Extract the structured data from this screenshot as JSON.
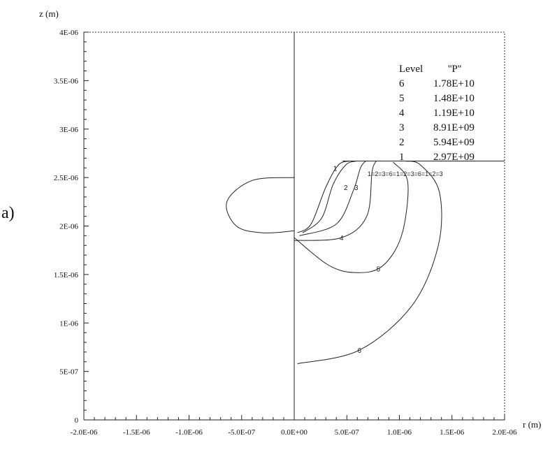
{
  "panel_label": "a)",
  "chart_data": {
    "type": "contour",
    "xlabel": "r (m)",
    "ylabel": "z (m)",
    "xlim": [
      -2e-06,
      2e-06
    ],
    "ylim": [
      0,
      4e-06
    ],
    "x_tick_labels": [
      "-2.0E-06",
      "-1.5E-06",
      "-1.0E-06",
      "-5.0E-07",
      "0.0E+00",
      "5.0E-07",
      "1.0E-06",
      "1.5E-06",
      "2.0E-06"
    ],
    "x_tick_values": [
      -2e-06,
      -1.5e-06,
      -1e-06,
      -5e-07,
      0,
      5e-07,
      1e-06,
      1.5e-06,
      2e-06
    ],
    "y_tick_labels": [
      "0",
      "5E-07",
      "1E-06",
      "1.5E-06",
      "2E-06",
      "2.5E-06",
      "3E-06",
      "3.5E-06",
      "4E-06"
    ],
    "y_tick_values": [
      0,
      5e-07,
      1e-06,
      1.5e-06,
      2e-06,
      2.5e-06,
      3e-06,
      3.5e-06,
      4e-06
    ],
    "legend": {
      "header_level": "Level",
      "header_var": "''P''",
      "entries": [
        {
          "level": "6",
          "value": "1.78E+10"
        },
        {
          "level": "5",
          "value": "1.48E+10"
        },
        {
          "level": "4",
          "value": "1.19E+10"
        },
        {
          "level": "3",
          "value": "8.91E+09"
        },
        {
          "level": "2",
          "value": "5.94E+09"
        },
        {
          "level": "1",
          "value": "2.97E+09"
        }
      ],
      "placement": "top-right"
    },
    "interface_text": "1=2=3=6=1=2=3=6=1=2=3",
    "interface_z": 2.67e-06,
    "contours": [
      {
        "level": "1",
        "label_at": [
          3.9e-07,
          2.6e-06
        ],
        "points": [
          [
            3e-08,
            1.93e-06
          ],
          [
            1.6e-07,
            2.02e-06
          ],
          [
            3e-07,
            2.4e-06
          ],
          [
            4.2e-07,
            2.63e-06
          ],
          [
            5.3e-07,
            2.67e-06
          ]
        ]
      },
      {
        "level": "2",
        "label_at": [
          4.9e-07,
          2.4e-06
        ],
        "points": [
          [
            8e-08,
            1.93e-06
          ],
          [
            2.6e-07,
            2.08e-06
          ],
          [
            3.7e-07,
            2.43e-06
          ],
          [
            4.9e-07,
            2.63e-06
          ],
          [
            5.9e-07,
            2.67e-06
          ]
        ]
      },
      {
        "level": "3",
        "label_at": [
          5.9e-07,
          2.4e-06
        ],
        "points": [
          [
            5e-08,
            1.9e-06
          ],
          [
            4e-07,
            2.02e-06
          ],
          [
            5.6e-07,
            2.36e-06
          ],
          [
            6.3e-07,
            2.6e-06
          ],
          [
            6.8e-07,
            2.67e-06
          ]
        ]
      },
      {
        "level": "4",
        "label_at": [
          4.5e-07,
          1.88e-06
        ],
        "points": [
          [
            0,
            1.85e-06
          ],
          [
            4.5e-07,
            1.88e-06
          ],
          [
            6.9e-07,
            2.1e-06
          ],
          [
            7.4e-07,
            2.56e-06
          ],
          [
            7.8e-07,
            2.67e-06
          ]
        ]
      },
      {
        "level": "5",
        "label_at": [
          8e-07,
          1.56e-06
        ],
        "points": [
          [
            0,
            1.88e-06
          ],
          [
            3.2e-07,
            1.6e-06
          ],
          [
            5.7e-07,
            1.52e-06
          ],
          [
            8.3e-07,
            1.58e-06
          ],
          [
            1.02e-06,
            1.9e-06
          ],
          [
            1.08e-06,
            2.45e-06
          ],
          [
            9.4e-07,
            2.66e-06
          ]
        ]
      },
      {
        "level": "6",
        "label_at": [
          6.2e-07,
          7.2e-07
        ],
        "points": [
          [
            3e-08,
            5.8e-07
          ],
          [
            6.2e-07,
            7.2e-07
          ],
          [
            1.12e-06,
            1.18e-06
          ],
          [
            1.37e-06,
            1.8e-06
          ],
          [
            1.38e-06,
            2.35e-06
          ],
          [
            1.2e-06,
            2.63e-06
          ],
          [
            1.06e-06,
            2.67e-06
          ]
        ]
      }
    ],
    "left_shape": {
      "points": [
        [
          0,
          2.5e-06
        ],
        [
          -4e-07,
          2.47e-06
        ],
        [
          -6.4e-07,
          2.25e-06
        ],
        [
          -5.5e-07,
          2e-06
        ],
        [
          -3e-07,
          1.93e-06
        ],
        [
          0,
          1.95e-06
        ]
      ]
    },
    "grid": false
  }
}
